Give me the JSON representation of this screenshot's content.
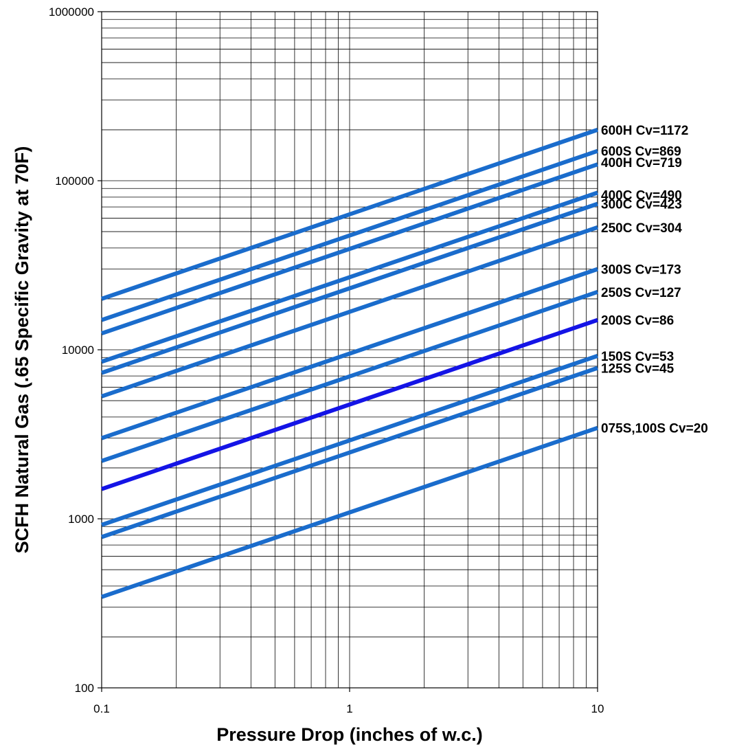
{
  "chart_data": {
    "type": "line",
    "x_scale": "log",
    "y_scale": "log",
    "xlim": [
      0.1,
      10
    ],
    "ylim": [
      100,
      1000000
    ],
    "grid": true,
    "xlabel": "Pressure Drop (inches of w.c.)",
    "ylabel": "SCFH Natural Gas (.65 Specific Gravity at 70F)",
    "x_ticks": [
      {
        "value": 0.1,
        "label": "0.1"
      },
      {
        "value": 1,
        "label": "1"
      },
      {
        "value": 10,
        "label": "10"
      }
    ],
    "y_ticks": [
      {
        "value": 100,
        "label": "100"
      },
      {
        "value": 1000,
        "label": "1000"
      },
      {
        "value": 10000,
        "label": "10000"
      },
      {
        "value": 100000,
        "label": "100000"
      },
      {
        "value": 1000000,
        "label": "1000000"
      }
    ],
    "series": [
      {
        "name": "600H Cv=1172",
        "x": [
          0.1,
          10
        ],
        "y": [
          20000,
          200000
        ],
        "color": "#1a6ccc"
      },
      {
        "name": "600S Cv=869",
        "x": [
          0.1,
          10
        ],
        "y": [
          15000,
          150000
        ],
        "color": "#1a6ccc"
      },
      {
        "name": "400H Cv=719",
        "x": [
          0.1,
          10
        ],
        "y": [
          12500,
          125000
        ],
        "color": "#1a6ccc"
      },
      {
        "name": "400C Cv=490",
        "x": [
          0.1,
          10
        ],
        "y": [
          8500,
          85000
        ],
        "color": "#1a6ccc"
      },
      {
        "name": "300C Cv=423",
        "x": [
          0.1,
          10
        ],
        "y": [
          7300,
          73000
        ],
        "color": "#1a6ccc"
      },
      {
        "name": "250C Cv=304",
        "x": [
          0.1,
          10
        ],
        "y": [
          5300,
          53000
        ],
        "color": "#1a6ccc"
      },
      {
        "name": "300S Cv=173",
        "x": [
          0.1,
          10
        ],
        "y": [
          3000,
          30000
        ],
        "color": "#1a6ccc"
      },
      {
        "name": "250S Cv=127",
        "x": [
          0.1,
          10
        ],
        "y": [
          2200,
          22000
        ],
        "color": "#1a6ccc"
      },
      {
        "name": "200S Cv=86",
        "x": [
          0.1,
          10
        ],
        "y": [
          1500,
          15000
        ],
        "color": "#1414e6"
      },
      {
        "name": "150S Cv=53",
        "x": [
          0.1,
          10
        ],
        "y": [
          920,
          9200
        ],
        "color": "#1a6ccc"
      },
      {
        "name": "125S Cv=45",
        "x": [
          0.1,
          10
        ],
        "y": [
          780,
          7800
        ],
        "color": "#1a6ccc"
      },
      {
        "name": "075S,100S Cv=20",
        "x": [
          0.1,
          10
        ],
        "y": [
          345,
          3450
        ],
        "color": "#1a6ccc"
      }
    ]
  }
}
